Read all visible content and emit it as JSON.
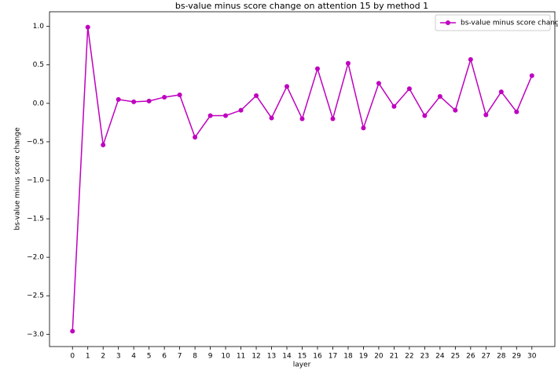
{
  "chart_data": {
    "type": "line",
    "title": "bs-value minus score change on attention 15 by method 1",
    "xlabel": "layer",
    "ylabel": "bs-value minus score change",
    "x": [
      0,
      1,
      2,
      3,
      4,
      5,
      6,
      7,
      8,
      9,
      10,
      11,
      12,
      13,
      14,
      15,
      16,
      17,
      18,
      19,
      20,
      21,
      22,
      23,
      24,
      25,
      26,
      27,
      28,
      29,
      30
    ],
    "series": [
      {
        "name": "bs-value minus score change",
        "color": "#bf00bf",
        "values": [
          -2.96,
          0.99,
          -0.54,
          0.05,
          0.02,
          0.03,
          0.08,
          0.11,
          -0.44,
          -0.16,
          -0.16,
          -0.09,
          0.1,
          -0.19,
          0.22,
          -0.2,
          0.45,
          -0.2,
          0.52,
          -0.32,
          0.26,
          -0.04,
          0.19,
          -0.16,
          0.09,
          -0.09,
          0.57,
          -0.15,
          0.15,
          -0.11,
          0.36
        ]
      }
    ],
    "xlim": [
      -1.5,
      31.5
    ],
    "xticks": [
      0,
      1,
      2,
      3,
      4,
      5,
      6,
      7,
      8,
      9,
      10,
      11,
      12,
      13,
      14,
      15,
      16,
      17,
      18,
      19,
      20,
      21,
      22,
      23,
      24,
      25,
      26,
      27,
      28,
      29,
      30
    ],
    "ylim": [
      -3.16,
      1.19
    ],
    "yticks": [
      {
        "value": 1,
        "label": "1.0"
      },
      0.5,
      {
        "value": 0,
        "label": "0.0"
      },
      {
        "value": -0.5,
        "label": "−0.5"
      },
      {
        "value": -1,
        "label": "−1.0"
      },
      {
        "value": -1.5,
        "label": "−1.5"
      },
      {
        "value": -2,
        "label": "−2.0"
      },
      {
        "value": -2.5,
        "label": "−2.5"
      },
      {
        "value": -3,
        "label": "−3.0"
      }
    ],
    "legend": "upper right"
  }
}
